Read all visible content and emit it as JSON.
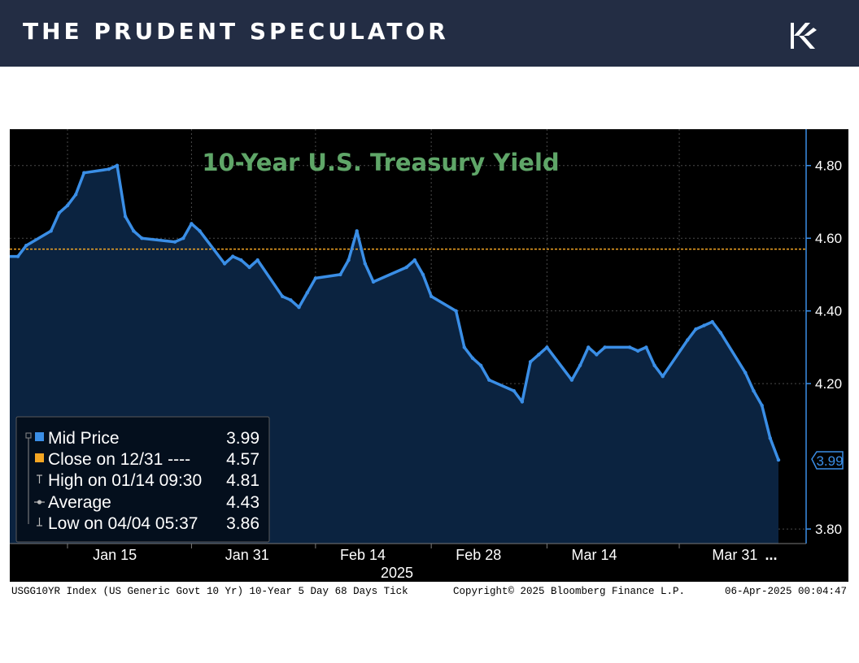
{
  "header": {
    "brand": "THE PRUDENT SPECULATOR",
    "logo_icon": "prudent-speculator-k-logo"
  },
  "chart_data": {
    "type": "area",
    "title": "10-Year U.S. Treasury Yield",
    "x_tick_labels": [
      "Jan 15",
      "Jan 31",
      "Feb 14",
      "Feb 28",
      "Mar 14",
      "Mar 31"
    ],
    "x_year_label": "2025",
    "x_more_marker": "...",
    "y_tick_labels": [
      "4.80",
      "4.60",
      "4.40",
      "4.20",
      "3.80"
    ],
    "ylim": [
      3.76,
      4.9
    ],
    "grid": true,
    "last_value_tag": "3.99",
    "reference_line": {
      "label": "Close on 12/31",
      "value": 4.57
    },
    "series": [
      {
        "name": "Mid Price",
        "x": [
          "2025-01-02",
          "2025-01-03",
          "2025-01-06",
          "2025-01-07",
          "2025-01-08",
          "2025-01-09",
          "2025-01-10",
          "2025-01-13",
          "2025-01-14",
          "2025-01-15",
          "2025-01-16",
          "2025-01-17",
          "2025-01-21",
          "2025-01-22",
          "2025-01-23",
          "2025-01-24",
          "2025-01-27",
          "2025-01-28",
          "2025-01-29",
          "2025-01-30",
          "2025-01-31",
          "2025-02-03",
          "2025-02-04",
          "2025-02-05",
          "2025-02-06",
          "2025-02-07",
          "2025-02-10",
          "2025-02-11",
          "2025-02-12",
          "2025-02-13",
          "2025-02-14",
          "2025-02-18",
          "2025-02-19",
          "2025-02-20",
          "2025-02-21",
          "2025-02-24",
          "2025-02-25",
          "2025-02-26",
          "2025-02-27",
          "2025-02-28",
          "2025-03-03",
          "2025-03-04",
          "2025-03-05",
          "2025-03-06",
          "2025-03-07",
          "2025-03-10",
          "2025-03-11",
          "2025-03-12",
          "2025-03-13",
          "2025-03-14",
          "2025-03-17",
          "2025-03-18",
          "2025-03-19",
          "2025-03-20",
          "2025-03-21",
          "2025-03-24",
          "2025-03-25",
          "2025-03-26",
          "2025-03-27",
          "2025-03-28",
          "2025-03-31",
          "2025-04-01",
          "2025-04-02",
          "2025-04-03",
          "2025-04-04"
        ],
        "values": [
          4.55,
          4.58,
          4.62,
          4.67,
          4.69,
          4.72,
          4.78,
          4.79,
          4.8,
          4.66,
          4.62,
          4.6,
          4.59,
          4.6,
          4.64,
          4.62,
          4.53,
          4.55,
          4.54,
          4.52,
          4.54,
          4.44,
          4.43,
          4.41,
          4.45,
          4.49,
          4.5,
          4.54,
          4.62,
          4.53,
          4.48,
          4.52,
          4.54,
          4.5,
          4.44,
          4.4,
          4.3,
          4.27,
          4.25,
          4.21,
          4.18,
          4.15,
          4.26,
          4.28,
          4.3,
          4.21,
          4.25,
          4.3,
          4.28,
          4.3,
          4.3,
          4.29,
          4.3,
          4.25,
          4.22,
          4.32,
          4.35,
          4.36,
          4.37,
          4.34,
          4.23,
          4.18,
          4.14,
          4.05,
          3.99
        ]
      }
    ],
    "legend": {
      "placement": "bottom-left",
      "items": [
        {
          "icon": "square-swatch",
          "label": "Mid Price",
          "value": "3.99",
          "color": "#3a8ee6"
        },
        {
          "icon": "square-swatch",
          "label": "Close on 12/31 ----",
          "value": "4.57",
          "color": "#f5a623"
        },
        {
          "icon": "high-marker",
          "label": "High on 01/14 09:30",
          "value": "4.81"
        },
        {
          "icon": "average-marker",
          "label": "Average",
          "value": "4.43"
        },
        {
          "icon": "low-marker",
          "label": "Low on 04/04 05:37",
          "value": "3.86"
        }
      ]
    },
    "footer": {
      "left": "USGG10YR Index (US Generic Govt 10 Yr) 10-Year 5 Day 68 Days  Tick",
      "center": "Copyright© 2025 Bloomberg Finance L.P.",
      "right": "06-Apr-2025 00:04:47"
    },
    "colors": {
      "line": "#3a8ee6",
      "fill": "#0b2340",
      "reference": "#f5a623",
      "title": "#5fa668",
      "grid": "#4a4a4a",
      "axis": "#ffffff"
    }
  }
}
